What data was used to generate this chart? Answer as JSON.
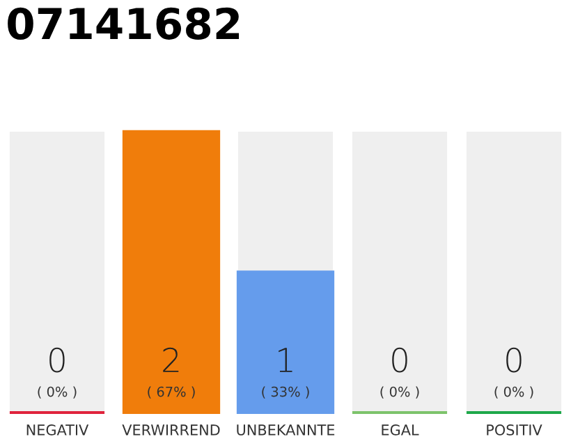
{
  "chart_data": {
    "type": "bar",
    "title": "07141682",
    "categories": [
      "NEGATIV",
      "VERWIRREND",
      "UNBEKANNTE",
      "EGAL",
      "POSITIV"
    ],
    "values": [
      0,
      2,
      1,
      0,
      0
    ],
    "colors": [
      "#e0233c",
      "#f07d0b",
      "#659cec",
      "#7dc36b",
      "#1ea84a"
    ],
    "value_labels": [
      "0\n( 0% )",
      "2\n( 67% )",
      "1\n( 33% )",
      "0\n( 0% )",
      "0\n( 0% )"
    ],
    "ylim": [
      0,
      2
    ],
    "tick_labels": "x",
    "grid": false,
    "legend": false
  }
}
